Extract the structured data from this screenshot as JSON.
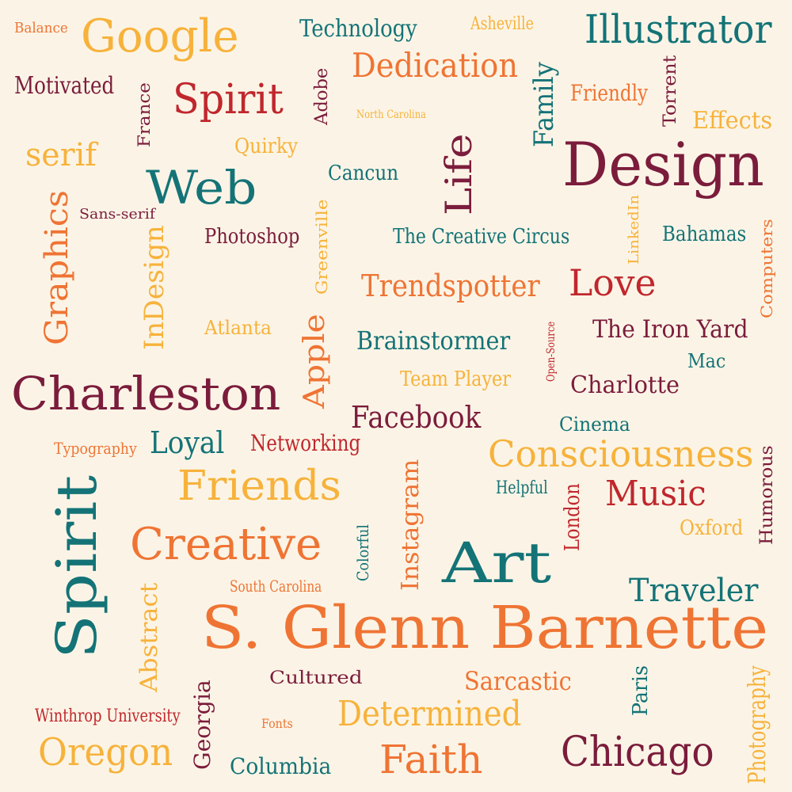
{
  "colors": {
    "background": "#fbf4e6",
    "maroon": "#7b1c3c",
    "red": "#c0272d",
    "orange": "#ef7434",
    "yellow": "#f7b23b",
    "teal": "#147377"
  },
  "words": [
    {
      "text": "Balance",
      "color": "orange"
    },
    {
      "text": "Google",
      "color": "yellow"
    },
    {
      "text": "Technology",
      "color": "teal"
    },
    {
      "text": "Asheville",
      "color": "yellow"
    },
    {
      "text": "Illustrator",
      "color": "teal"
    },
    {
      "text": "Dedication",
      "color": "orange"
    },
    {
      "text": "Motivated",
      "color": "maroon"
    },
    {
      "text": "Spirit",
      "color": "red"
    },
    {
      "text": "France",
      "color": "maroon"
    },
    {
      "text": "Adobe",
      "color": "maroon"
    },
    {
      "text": "North Carolina",
      "color": "yellow"
    },
    {
      "text": "Family",
      "color": "teal"
    },
    {
      "text": "Friendly",
      "color": "orange"
    },
    {
      "text": "Torrent",
      "color": "maroon"
    },
    {
      "text": "Effects",
      "color": "yellow"
    },
    {
      "text": "serif",
      "color": "yellow"
    },
    {
      "text": "Quirky",
      "color": "yellow"
    },
    {
      "text": "Life",
      "color": "maroon"
    },
    {
      "text": "Design",
      "color": "maroon"
    },
    {
      "text": "Web",
      "color": "teal"
    },
    {
      "text": "Cancun",
      "color": "teal"
    },
    {
      "text": "Graphics",
      "color": "orange"
    },
    {
      "text": "Sans-serif",
      "color": "maroon"
    },
    {
      "text": "Photoshop",
      "color": "maroon"
    },
    {
      "text": "InDesign",
      "color": "yellow"
    },
    {
      "text": "Greenville",
      "color": "yellow"
    },
    {
      "text": "The Creative Circus",
      "color": "teal"
    },
    {
      "text": "LinkedIn",
      "color": "yellow"
    },
    {
      "text": "Bahamas",
      "color": "teal"
    },
    {
      "text": "Computers",
      "color": "orange"
    },
    {
      "text": "Trendspotter",
      "color": "orange"
    },
    {
      "text": "Love",
      "color": "red"
    },
    {
      "text": "Atlanta",
      "color": "yellow"
    },
    {
      "text": "Apple",
      "color": "orange"
    },
    {
      "text": "Brainstormer",
      "color": "teal"
    },
    {
      "text": "Open-Source",
      "color": "red"
    },
    {
      "text": "The Iron Yard",
      "color": "maroon"
    },
    {
      "text": "Mac",
      "color": "teal"
    },
    {
      "text": "Charleston",
      "color": "maroon"
    },
    {
      "text": "Team Player",
      "color": "yellow"
    },
    {
      "text": "Charlotte",
      "color": "maroon"
    },
    {
      "text": "Facebook",
      "color": "maroon"
    },
    {
      "text": "Cinema",
      "color": "teal"
    },
    {
      "text": "Typography",
      "color": "orange"
    },
    {
      "text": "Loyal",
      "color": "teal"
    },
    {
      "text": "Networking",
      "color": "red"
    },
    {
      "text": "Consciousness",
      "color": "yellow"
    },
    {
      "text": "Humorous",
      "color": "maroon"
    },
    {
      "text": "Spirit",
      "color": "teal"
    },
    {
      "text": "Friends",
      "color": "yellow"
    },
    {
      "text": "Instagram",
      "color": "orange"
    },
    {
      "text": "Helpful",
      "color": "teal"
    },
    {
      "text": "London",
      "color": "red"
    },
    {
      "text": "Music",
      "color": "red"
    },
    {
      "text": "Creative",
      "color": "orange"
    },
    {
      "text": "Colorful",
      "color": "teal"
    },
    {
      "text": "Oxford",
      "color": "yellow"
    },
    {
      "text": "Art",
      "color": "teal"
    },
    {
      "text": "Abstract",
      "color": "yellow"
    },
    {
      "text": "South Carolina",
      "color": "orange"
    },
    {
      "text": "Traveler",
      "color": "teal"
    },
    {
      "text": "S. Glenn Barnette",
      "color": "orange"
    },
    {
      "text": "Cultured",
      "color": "maroon"
    },
    {
      "text": "Sarcastic",
      "color": "orange"
    },
    {
      "text": "Paris",
      "color": "teal"
    },
    {
      "text": "Photography",
      "color": "yellow"
    },
    {
      "text": "Winthrop University",
      "color": "red"
    },
    {
      "text": "Fonts",
      "color": "orange"
    },
    {
      "text": "Determined",
      "color": "yellow"
    },
    {
      "text": "Georgia",
      "color": "maroon"
    },
    {
      "text": "Oregon",
      "color": "yellow"
    },
    {
      "text": "Columbia",
      "color": "teal"
    },
    {
      "text": "Faith",
      "color": "orange"
    },
    {
      "text": "Chicago",
      "color": "maroon"
    }
  ]
}
